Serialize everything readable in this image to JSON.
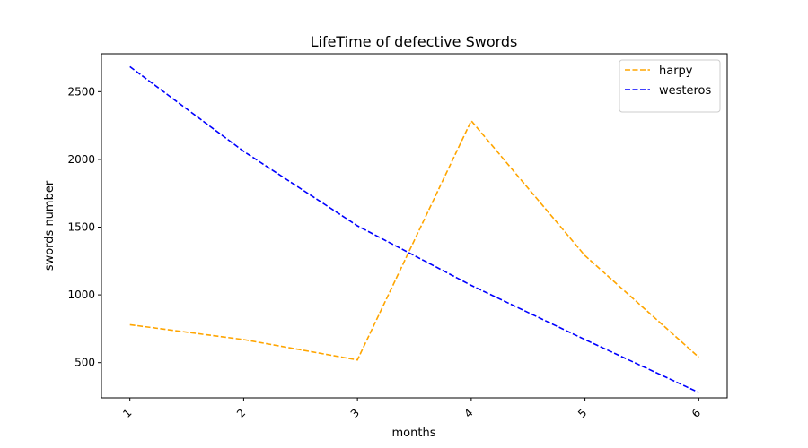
{
  "chart_data": {
    "type": "line",
    "title": "LifeTime of defective Swords",
    "xlabel": "months",
    "ylabel": "swords number",
    "x": [
      1,
      2,
      3,
      4,
      5,
      6
    ],
    "x_tick_labels": [
      "1",
      "2",
      "3",
      "4",
      "5",
      "6"
    ],
    "y_ticks": [
      500,
      1000,
      1500,
      2000,
      2500
    ],
    "y_tick_labels": [
      "500",
      "1000",
      "1500",
      "2000",
      "2500"
    ],
    "xlim": [
      0.75,
      6.25
    ],
    "ylim": [
      240,
      2780
    ],
    "grid": false,
    "legend_position": "top-right",
    "series": [
      {
        "name": "harpy",
        "values": [
          780,
          670,
          520,
          2285,
          1290,
          540
        ],
        "color": "#ffa500",
        "linestyle": "dashed"
      },
      {
        "name": "westeros",
        "values": [
          2685,
          2060,
          1510,
          1070,
          670,
          280
        ],
        "color": "#0000ff",
        "linestyle": "dashed"
      }
    ]
  }
}
